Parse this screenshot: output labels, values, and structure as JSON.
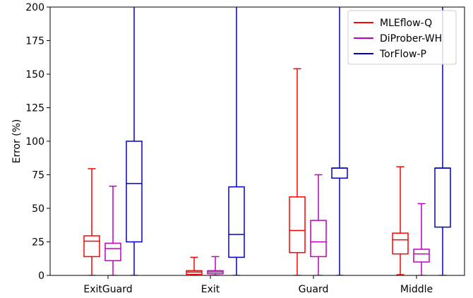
{
  "chart_data": {
    "type": "boxplot",
    "title": "",
    "xlabel": "",
    "ylabel": "Error (%)",
    "ylim": [
      0,
      200
    ],
    "yticks": [
      0,
      25,
      50,
      75,
      100,
      125,
      150,
      175,
      200
    ],
    "grid": false,
    "legend_position": "top-right",
    "categories": [
      "ExitGuard",
      "Exit",
      "Guard",
      "Middle"
    ],
    "series": [
      {
        "name": "MLEflow-Q",
        "color": "#ff0000",
        "boxes": [
          {
            "whisker_low": 0,
            "q1": 14,
            "median": 25.5,
            "q3": 29.5,
            "whisker_high": 79.5
          },
          {
            "whisker_low": 0,
            "q1": 0.8,
            "median": 2.5,
            "q3": 3.5,
            "whisker_high": 13.5
          },
          {
            "whisker_low": 0,
            "q1": 17,
            "median": 33.5,
            "q3": 58.5,
            "whisker_high": 154
          },
          {
            "whisker_low": 0.5,
            "q1": 16,
            "median": 26.5,
            "q3": 31.5,
            "whisker_high": 81
          }
        ]
      },
      {
        "name": "DiProber-WH",
        "color": "#bf00bf",
        "boxes": [
          {
            "whisker_low": 0,
            "q1": 11,
            "median": 20,
            "q3": 24,
            "whisker_high": 66.5
          },
          {
            "whisker_low": 0,
            "q1": 1.2,
            "median": 2.5,
            "q3": 3.5,
            "whisker_high": 14
          },
          {
            "whisker_low": 0,
            "q1": 14,
            "median": 25,
            "q3": 41,
            "whisker_high": 75
          },
          {
            "whisker_low": 0,
            "q1": 10,
            "median": 16,
            "q3": 19.5,
            "whisker_high": 53.5
          }
        ]
      },
      {
        "name": "TorFlow-P",
        "color": "#0000cc",
        "boxes": [
          {
            "whisker_low": 0,
            "q1": 25,
            "median": 68.5,
            "q3": 100,
            "whisker_high": 210
          },
          {
            "whisker_low": 0,
            "q1": 13.5,
            "median": 30.5,
            "q3": 66,
            "whisker_high": 210
          },
          {
            "whisker_low": 0,
            "q1": 72.5,
            "median": 80,
            "q3": 80,
            "whisker_high": 210
          },
          {
            "whisker_low": 0,
            "q1": 36,
            "median": 80,
            "q3": 80,
            "whisker_high": 210
          }
        ]
      }
    ]
  }
}
